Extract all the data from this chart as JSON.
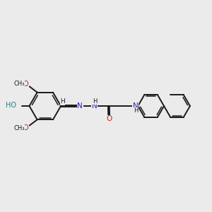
{
  "background_color": "#ebebeb",
  "bond_color": "#1a1a1a",
  "nitrogen_color": "#2222cc",
  "oxygen_color": "#cc2020",
  "teal_color": "#208080",
  "figsize": [
    3.0,
    3.0
  ],
  "dpi": 100,
  "xlim": [
    0,
    10
  ],
  "ylim": [
    2.0,
    8.0
  ]
}
